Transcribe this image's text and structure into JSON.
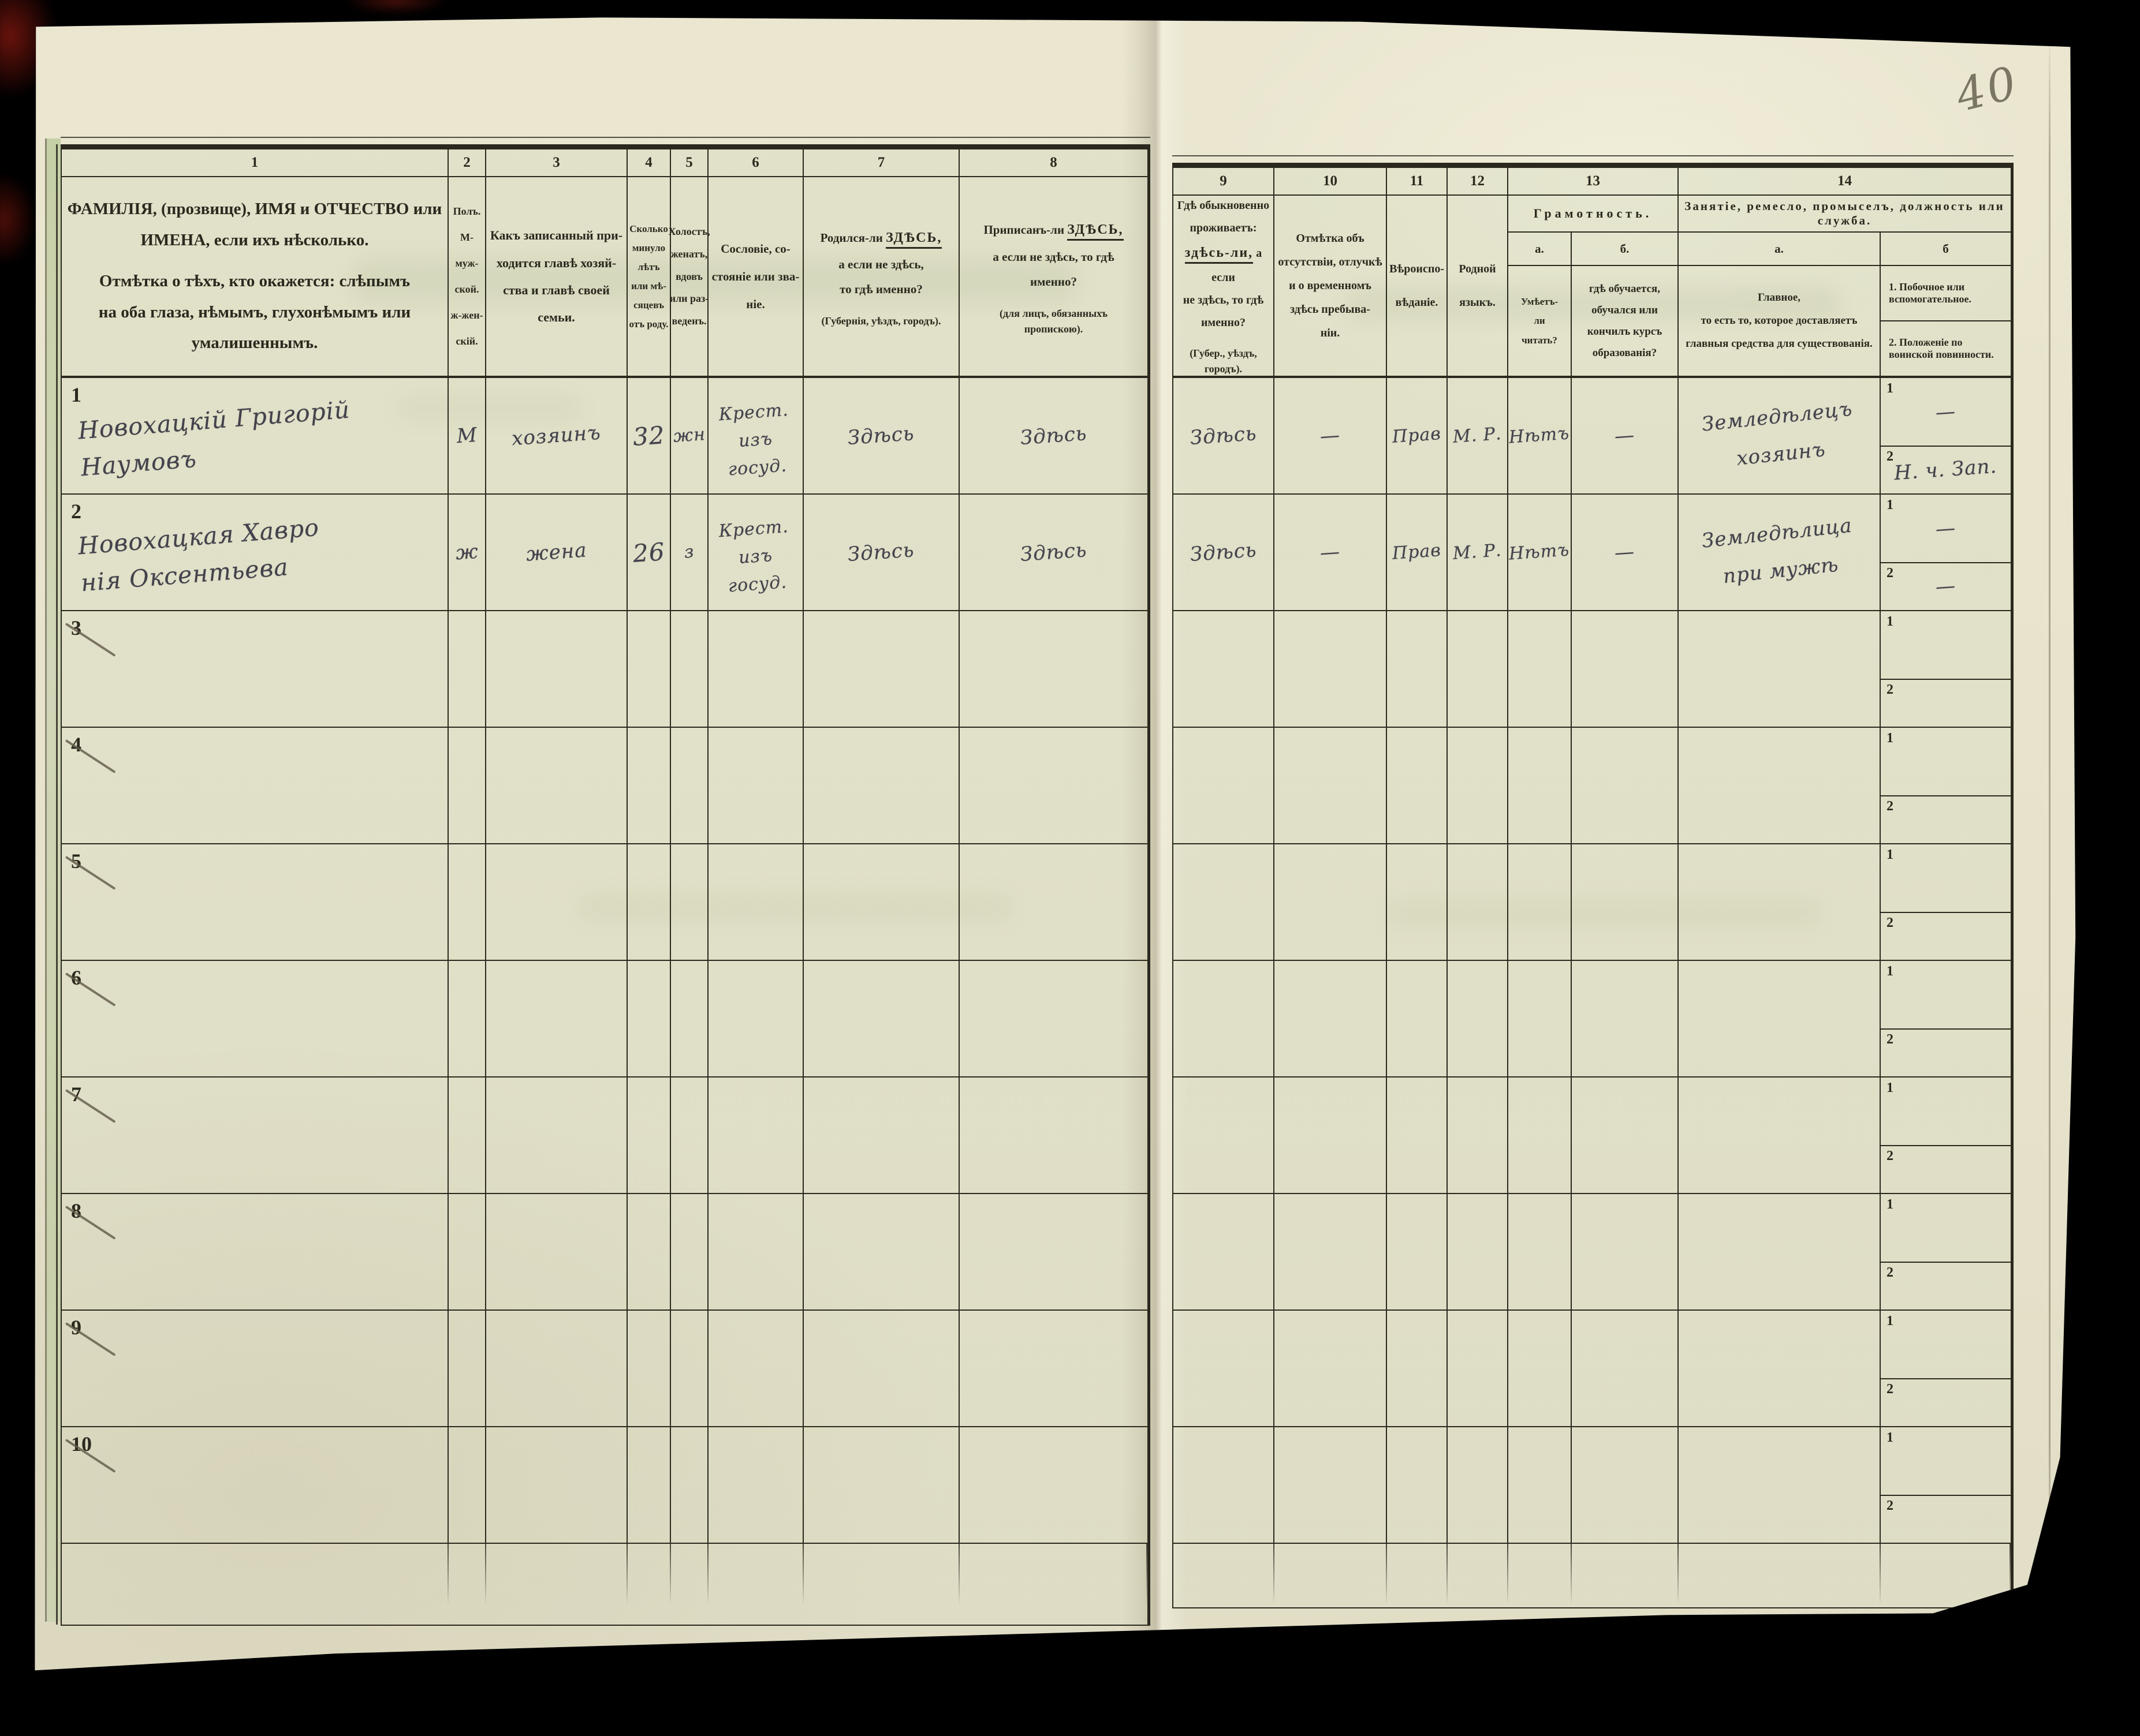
{
  "paper": {
    "pencil_number": "40"
  },
  "table": {
    "nums": {
      "c1": "1",
      "c2": "2",
      "c3": "3",
      "c4": "4",
      "c5": "5",
      "c6": "6",
      "c7": "7",
      "c8": "8",
      "c9": "9",
      "c10": "10",
      "c11": "11",
      "c12": "12",
      "c13": "13",
      "c14": "14"
    },
    "header": {
      "col1_p1": "ФАМИЛІЯ, (прозвище), ИМЯ и ОТЧЕСТВО или\nИМЕНА, если ихъ нѣсколько.",
      "col1_p2": "Отмѣтка о тѣхъ, кто окажется: слѣпымъ\nна оба глаза, нѣмымъ, глухонѣмымъ или\nумалишеннымъ.",
      "col2": "Полъ.\nМ-муж-\nской.\nж-жен-\nскій.",
      "col3": "Какъ записанный при-\nходится главѣ хозяй-\nства и главѣ своей\nсемьи.",
      "col4": "Сколько\nминуло\nлѣтъ\nили мѣ-\nсяцевъ\nотъ роду.",
      "col5": "Холостъ,\nженатъ,\nвдовъ\nили раз-\nведенъ.",
      "col6": "Сословіе, со-\nстояніе или зва-\nніе.",
      "col7_pre": "Родился-ли ",
      "col7_u": "ЗДѢСЬ,",
      "col7_rest": "а если не здѣсь,\nто гдѣ именно?",
      "col7_note": "(Губернія, уѣздъ, городъ).",
      "col8_pre": "Приписанъ-ли ",
      "col8_u": "ЗДѢСЬ,",
      "col8_rest": "а если не здѣсь, то гдѣ\nименно?",
      "col8_note": "(для лицъ, обязанныхъ\nпропискою).",
      "col9_l1": "Гдѣ обыкновенно\nпроживаетъ:",
      "col9_u": "здѣсь-ли,",
      "col9_after": " а если",
      "col9_l2": "не здѣсь, то гдѣ\nименно?",
      "col9_note": "(Губер., уѣздъ, городъ).",
      "col10": "Отмѣтка объ\nотсутствіи, отлучкѣ\nи о временномъ\nздѣсь пребыва-\nніи.",
      "col11": "Вѣроиспо-\nвѣданіе.",
      "col12": "Родной\nязыкъ.",
      "col13_title": "Грамотность.",
      "col13_a_label": "а.",
      "col13_b_label": "б.",
      "col13_a": "Умѣетъ-\nли\nчитать?",
      "col13_b": "гдѣ обучается,\nобучался или\nкончилъ курсъ\nобразованія?",
      "col14_title": "Занятіе, ремесло, промыселъ, должность или служба.",
      "col14_a_label": "а.",
      "col14_b_label": "б",
      "col14_a": "Главное,\nто есть то, которое доставляетъ\nглавныя средства для существованія.",
      "col14_b1": "1.  Побочное  или  вспомогательное.",
      "col14_b2": "2.  Положеніе по воинской повинности."
    },
    "subrow_label_1": "1",
    "subrow_label_2": "2",
    "rows": [
      {
        "num": "1",
        "crossed": false,
        "name": "Новохацкій Григорій\nНаумовъ",
        "sex": "М",
        "relation": "хозяинъ",
        "age": "32",
        "marital": "жн",
        "estate": "Крест.\nизъ госуд.",
        "born": "Здѣсь",
        "registered": "Здѣсь",
        "resides": "Здѣсь",
        "absence": "—",
        "religion": "Прав",
        "language": "М. Р.",
        "literate": "Нѣтъ",
        "education": "—",
        "occ_main": "Земледѣлецъ\nхозяинъ",
        "occ_side": "—",
        "military": "Н. ч. Зап."
      },
      {
        "num": "2",
        "crossed": false,
        "name": "Новохацкая Хавро\nнія Оксентьева",
        "sex": "ж",
        "relation": "жена",
        "age": "26",
        "marital": "з",
        "estate": "Крест.\nизъ госуд.",
        "born": "Здѣсь",
        "registered": "Здѣсь",
        "resides": "Здѣсь",
        "absence": "—",
        "religion": "Прав",
        "language": "М. Р.",
        "literate": "Нѣтъ",
        "education": "—",
        "occ_main": "Земледѣлица\nпри мужѣ",
        "occ_side": "—",
        "military": "—"
      },
      {
        "num": "3",
        "crossed": true,
        "name": "",
        "sex": "",
        "relation": "",
        "age": "",
        "marital": "",
        "estate": "",
        "born": "",
        "registered": "",
        "resides": "",
        "absence": "",
        "religion": "",
        "language": "",
        "literate": "",
        "education": "",
        "occ_main": "",
        "occ_side": "",
        "military": ""
      },
      {
        "num": "4",
        "crossed": true,
        "name": "",
        "sex": "",
        "relation": "",
        "age": "",
        "marital": "",
        "estate": "",
        "born": "",
        "registered": "",
        "resides": "",
        "absence": "",
        "religion": "",
        "language": "",
        "literate": "",
        "education": "",
        "occ_main": "",
        "occ_side": "",
        "military": ""
      },
      {
        "num": "5",
        "crossed": true,
        "name": "",
        "sex": "",
        "relation": "",
        "age": "",
        "marital": "",
        "estate": "",
        "born": "",
        "registered": "",
        "resides": "",
        "absence": "",
        "religion": "",
        "language": "",
        "literate": "",
        "education": "",
        "occ_main": "",
        "occ_side": "",
        "military": ""
      },
      {
        "num": "6",
        "crossed": true,
        "name": "",
        "sex": "",
        "relation": "",
        "age": "",
        "marital": "",
        "estate": "",
        "born": "",
        "registered": "",
        "resides": "",
        "absence": "",
        "religion": "",
        "language": "",
        "literate": "",
        "education": "",
        "occ_main": "",
        "occ_side": "",
        "military": ""
      },
      {
        "num": "7",
        "crossed": true,
        "name": "",
        "sex": "",
        "relation": "",
        "age": "",
        "marital": "",
        "estate": "",
        "born": "",
        "registered": "",
        "resides": "",
        "absence": "",
        "religion": "",
        "language": "",
        "literate": "",
        "education": "",
        "occ_main": "",
        "occ_side": "",
        "military": ""
      },
      {
        "num": "8",
        "crossed": true,
        "name": "",
        "sex": "",
        "relation": "",
        "age": "",
        "marital": "",
        "estate": "",
        "born": "",
        "registered": "",
        "resides": "",
        "absence": "",
        "religion": "",
        "language": "",
        "literate": "",
        "education": "",
        "occ_main": "",
        "occ_side": "",
        "military": ""
      },
      {
        "num": "9",
        "crossed": true,
        "name": "",
        "sex": "",
        "relation": "",
        "age": "",
        "marital": "",
        "estate": "",
        "born": "",
        "registered": "",
        "resides": "",
        "absence": "",
        "religion": "",
        "language": "",
        "literate": "",
        "education": "",
        "occ_main": "",
        "occ_side": "",
        "military": ""
      },
      {
        "num": "10",
        "crossed": true,
        "name": "",
        "sex": "",
        "relation": "",
        "age": "",
        "marital": "",
        "estate": "",
        "born": "",
        "registered": "",
        "resides": "",
        "absence": "",
        "religion": "",
        "language": "",
        "literate": "",
        "education": "",
        "occ_main": "",
        "occ_side": "",
        "military": ""
      }
    ]
  }
}
